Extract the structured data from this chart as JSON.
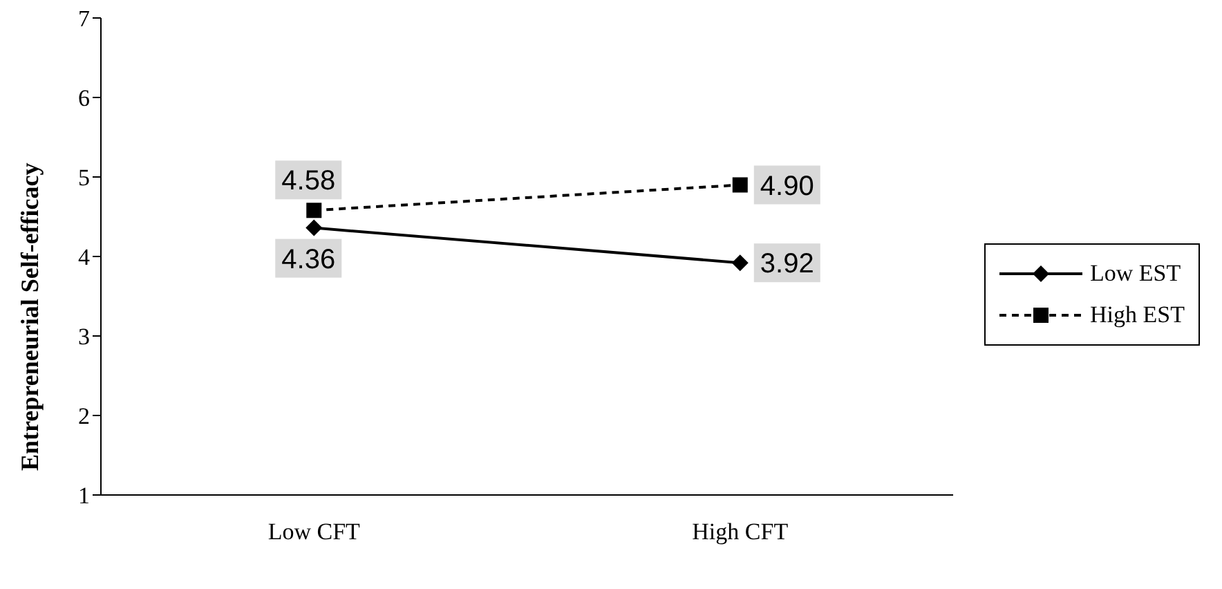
{
  "chart_data": {
    "type": "line",
    "ylabel": "Entrepreneurial Self-efficacy",
    "categories": [
      "Low CFT",
      "High CFT"
    ],
    "series": [
      {
        "name": "Low EST",
        "color": "#000000",
        "values": [
          4.36,
          3.92
        ],
        "value_labels": [
          "4.36",
          "3.92"
        ],
        "marker": "diamond",
        "line_style": "solid"
      },
      {
        "name": "High EST",
        "color": "#000000",
        "values": [
          4.58,
          4.9
        ],
        "value_labels": [
          "4.58",
          "4.90"
        ],
        "marker": "square",
        "line_style": "dashed"
      }
    ],
    "ylim": [
      1,
      7
    ],
    "yticks": [
      1,
      2,
      3,
      4,
      5,
      6,
      7
    ],
    "grid": false,
    "legend": "right"
  }
}
